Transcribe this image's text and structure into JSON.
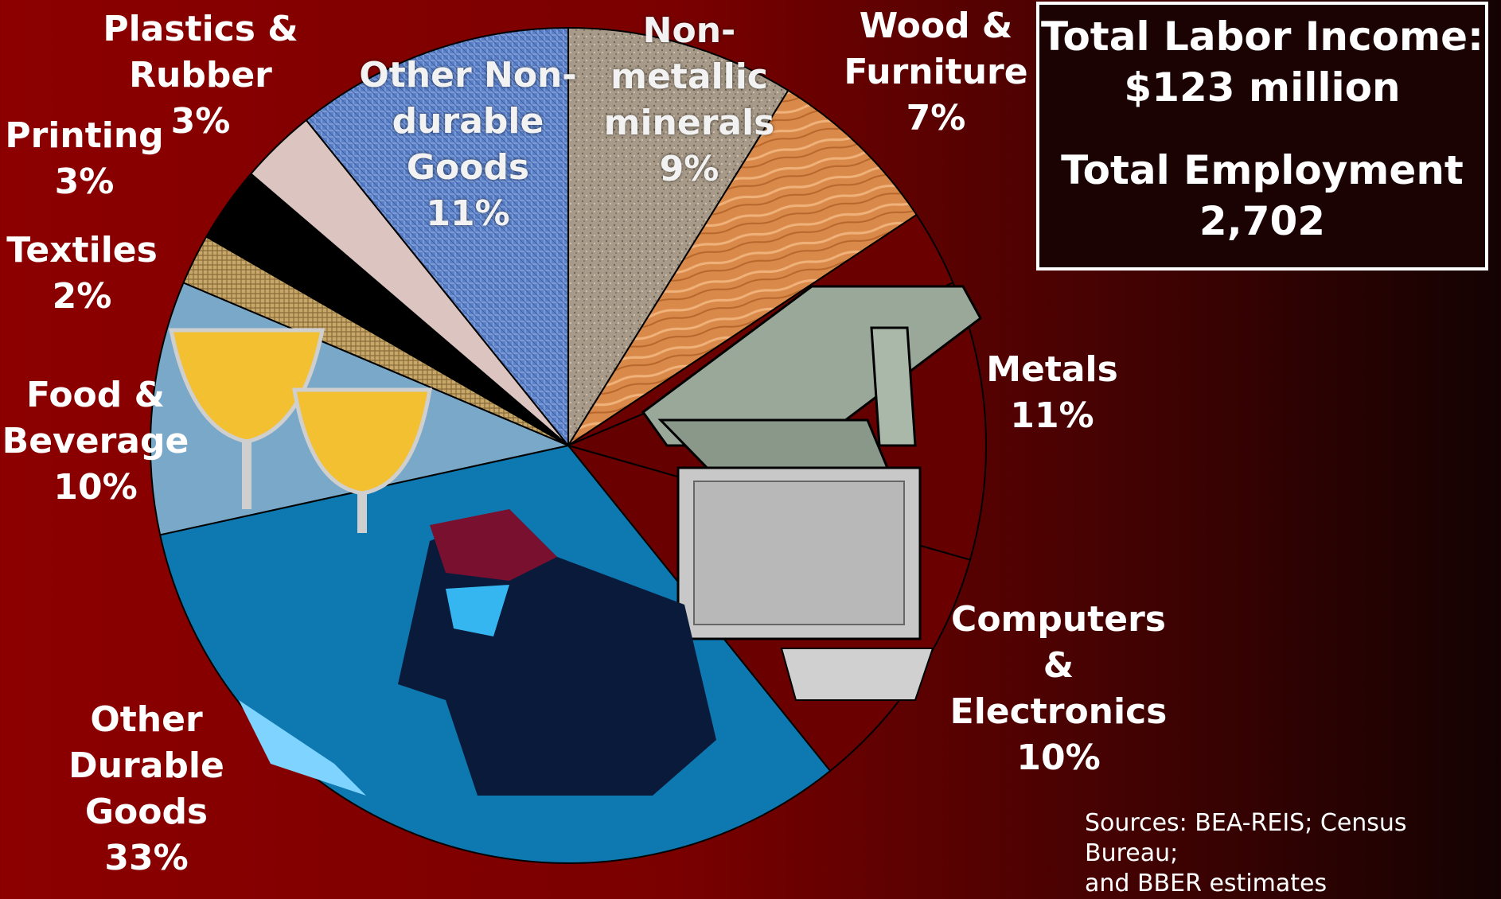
{
  "chart_data": {
    "type": "pie",
    "slices": [
      {
        "label": "Non-metallic minerals",
        "text_lines": [
          "Non-",
          "metallic",
          "minerals",
          "9%"
        ],
        "value": 9,
        "color": "#a89a88"
      },
      {
        "label": "Wood & Furniture",
        "text_lines": [
          "Wood &",
          "Furniture",
          "7%"
        ],
        "value": 7,
        "color": "#d98a4a"
      },
      {
        "label": "Unlabeled",
        "text_lines": [],
        "value": 3,
        "color": "#6a0000"
      },
      {
        "label": "Metals",
        "text_lines": [
          "Metals",
          "11%"
        ],
        "value": 11,
        "color": "#640000"
      },
      {
        "label": "Computers & Electronics",
        "text_lines": [
          "Computers",
          "&",
          "Electronics",
          "10%"
        ],
        "value": 10,
        "color": "#6a0000"
      },
      {
        "label": "Other Durable Goods",
        "text_lines": [
          "Other",
          "Durable",
          "Goods",
          "33%"
        ],
        "value": 33,
        "color": "#0e78b0"
      },
      {
        "label": "Food & Beverage",
        "text_lines": [
          "Food &",
          "Beverage",
          "10%"
        ],
        "value": 10,
        "color": "#7aa8c8"
      },
      {
        "label": "Textiles",
        "text_lines": [
          "Textiles",
          "2%"
        ],
        "value": 2,
        "color": "#c8a86a"
      },
      {
        "label": "Printing",
        "text_lines": [
          "Printing",
          "3%"
        ],
        "value": 3,
        "color": "#000000"
      },
      {
        "label": "Plastics & Rubber",
        "text_lines": [
          "Plastics &",
          "Rubber",
          "3%"
        ],
        "value": 3,
        "color": "#dcc4c0"
      },
      {
        "label": "Other Non-durable Goods",
        "text_lines": [
          "Other Non-",
          "durable",
          "Goods",
          "11%"
        ],
        "value": 11,
        "color": "#5a80c8"
      }
    ]
  },
  "summary": {
    "income_label": "Total Labor Income:",
    "income_value": "$123 million",
    "employment_label": "Total Employment",
    "employment_value": "2,702"
  },
  "sources": {
    "line1": "Sources: BEA-REIS; Census Bureau;",
    "line2": "and BBER estimates"
  },
  "colors": {
    "background_left": "#8c0000",
    "background_right": "#140202",
    "outline": "#000000"
  }
}
